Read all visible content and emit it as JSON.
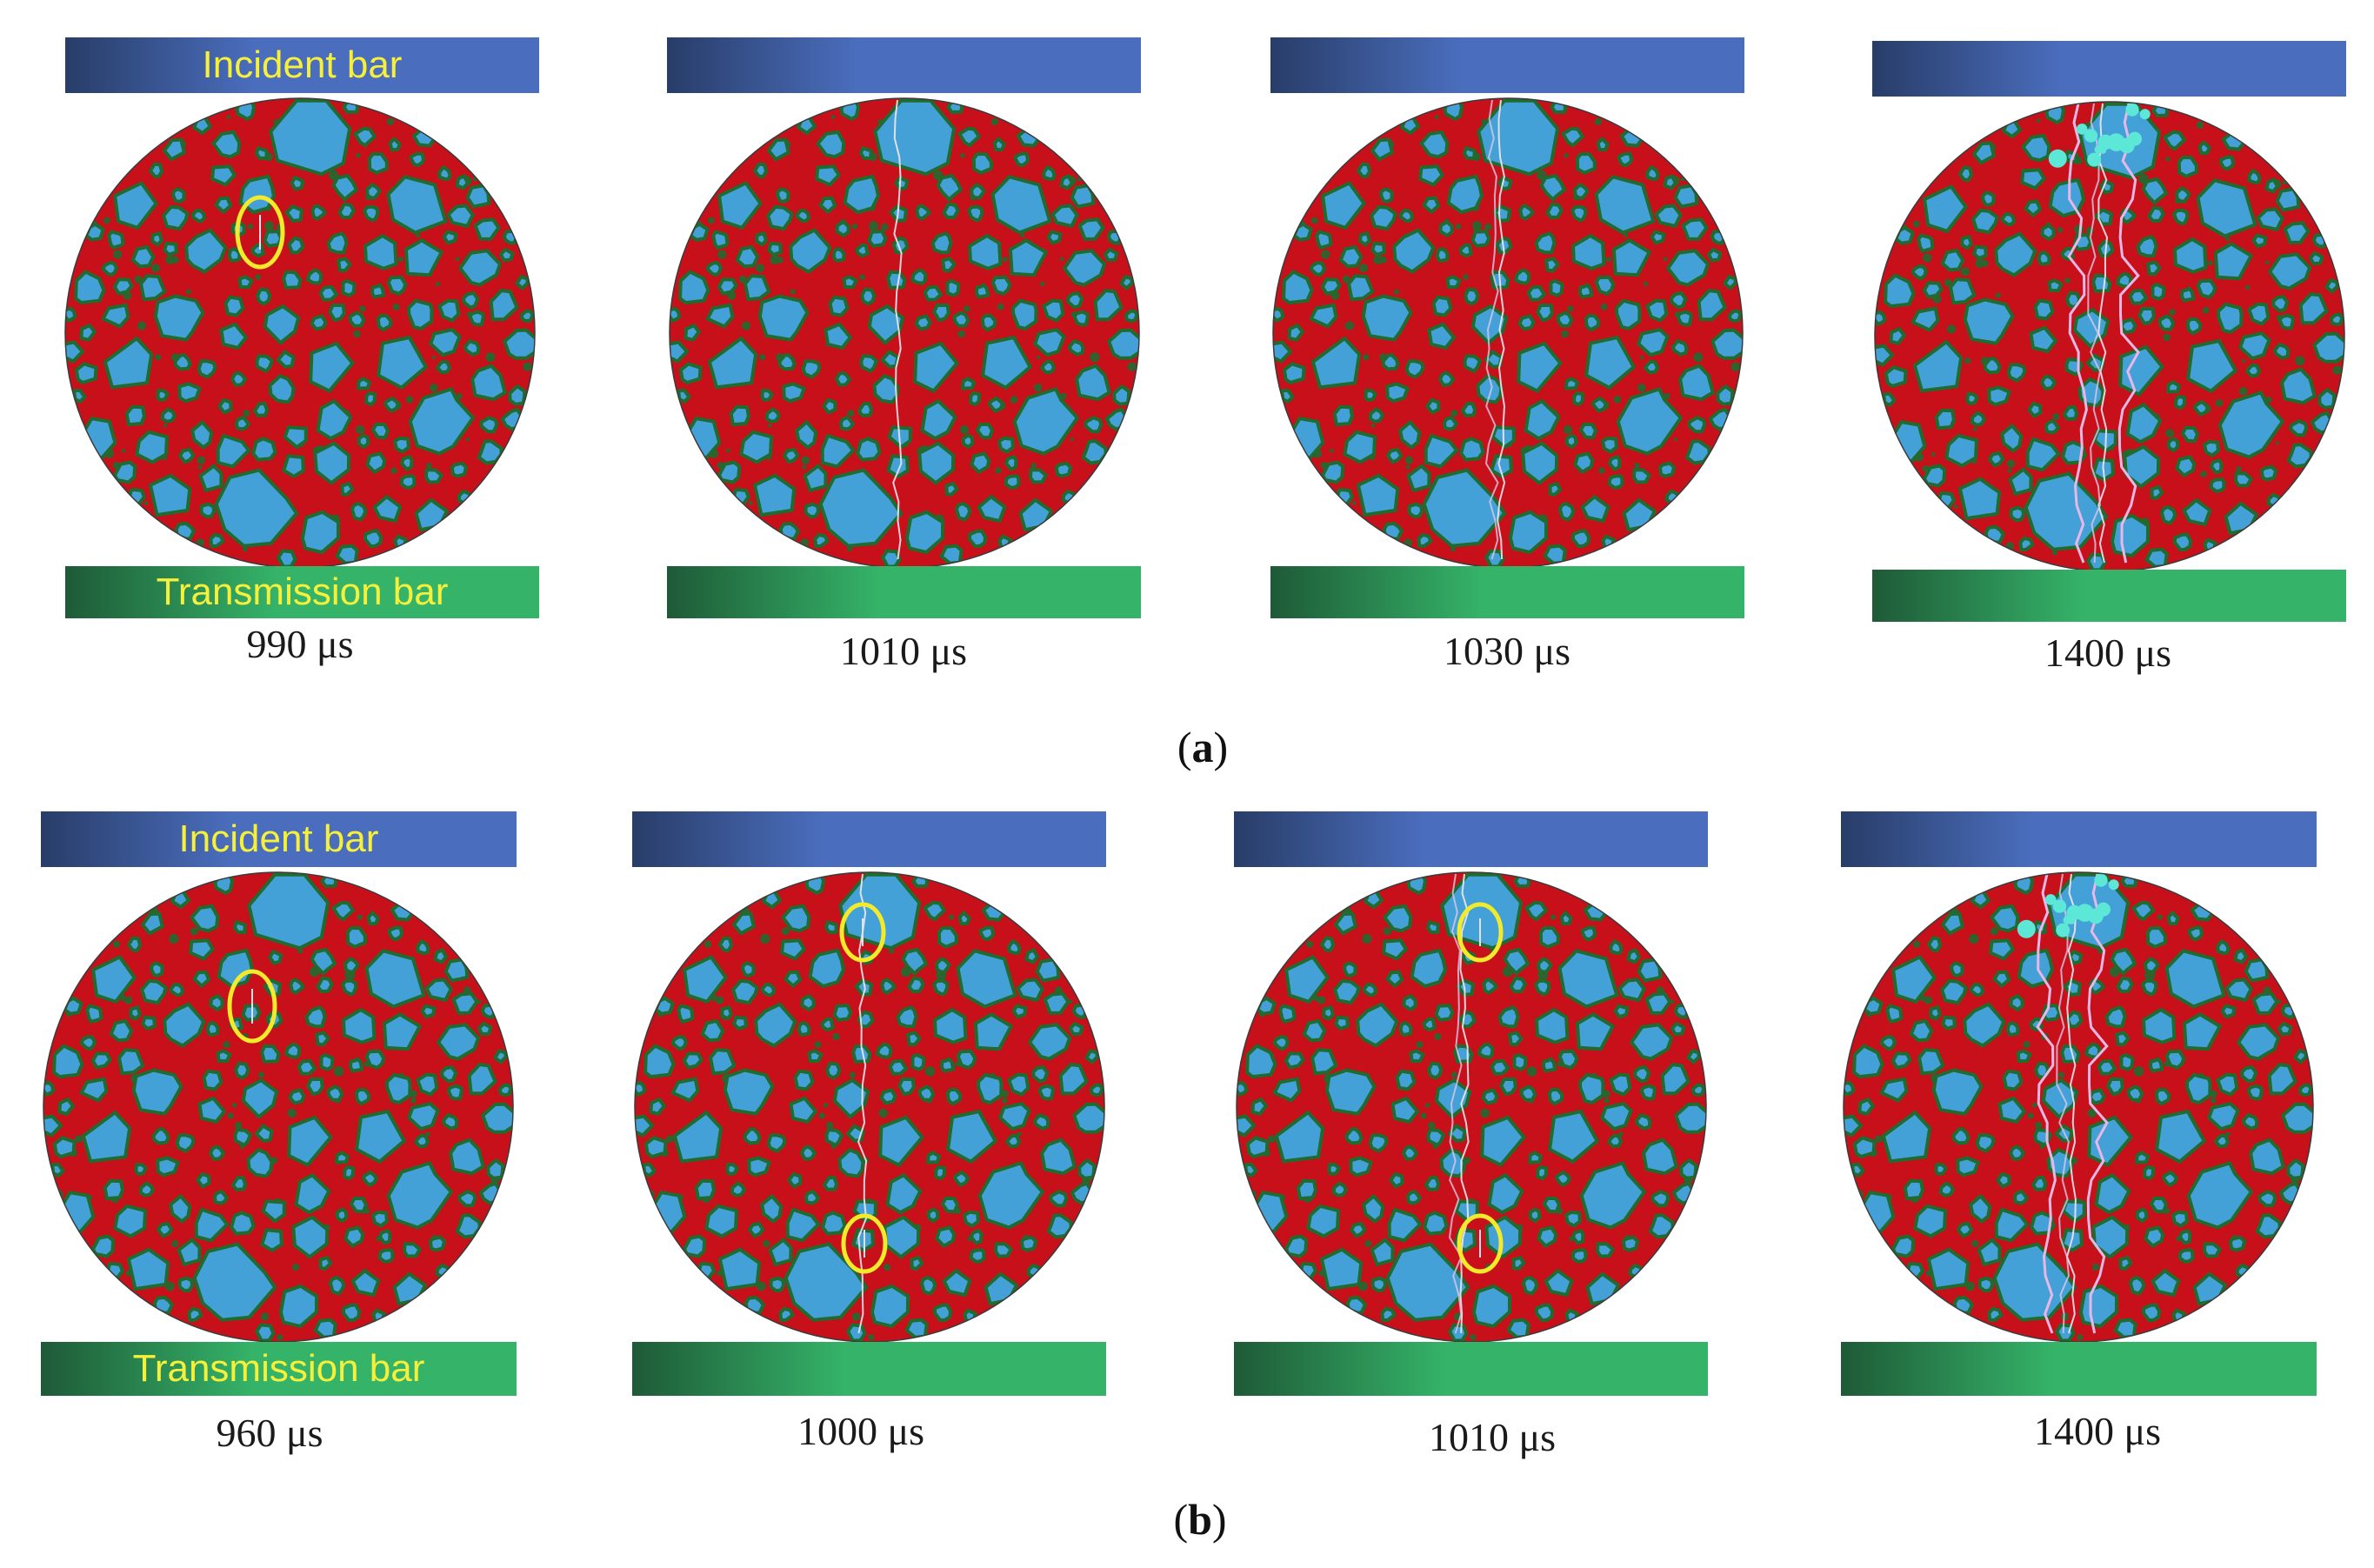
{
  "colors": {
    "incident_bar_dark": "#283d68",
    "incident_bar_light": "#4a6dbd",
    "transmission_bar_dark": "#1e5a37",
    "transmission_bar_light": "#35b469",
    "matrix_red": "#c8101a",
    "aggregate_blue": "#43a1d8",
    "itz_green": "#1f6b30",
    "crack_highlight": "#f2ea2a",
    "damage_cyan": "#5de7d6"
  },
  "rows": [
    {
      "label_open": "(",
      "label_letter": "a",
      "label_close": ")",
      "panels": [
        {
          "time": "990 μs",
          "incident_label": "Incident bar",
          "transmission_label": "Transmission bar",
          "marker_count": 1,
          "crack_level": 0
        },
        {
          "time": "1010 μs",
          "incident_label": "",
          "transmission_label": "",
          "marker_count": 0,
          "crack_level": 1
        },
        {
          "time": "1030 μs",
          "incident_label": "",
          "transmission_label": "",
          "marker_count": 0,
          "crack_level": 2
        },
        {
          "time": "1400 μs",
          "incident_label": "",
          "transmission_label": "",
          "marker_count": 0,
          "crack_level": 3
        }
      ]
    },
    {
      "label_open": "(",
      "label_letter": "b",
      "label_close": ")",
      "panels": [
        {
          "time": "960 μs",
          "incident_label": "Incident bar",
          "transmission_label": "Transmission bar",
          "marker_count": 1,
          "crack_level": 0
        },
        {
          "time": "1000 μs",
          "incident_label": "",
          "transmission_label": "",
          "marker_count": 2,
          "crack_level": 1
        },
        {
          "time": "1010 μs",
          "incident_label": "",
          "transmission_label": "",
          "marker_count": 2,
          "crack_level": 2
        },
        {
          "time": "1400 μs",
          "incident_label": "",
          "transmission_label": "",
          "marker_count": 0,
          "crack_level": 3
        }
      ]
    }
  ]
}
